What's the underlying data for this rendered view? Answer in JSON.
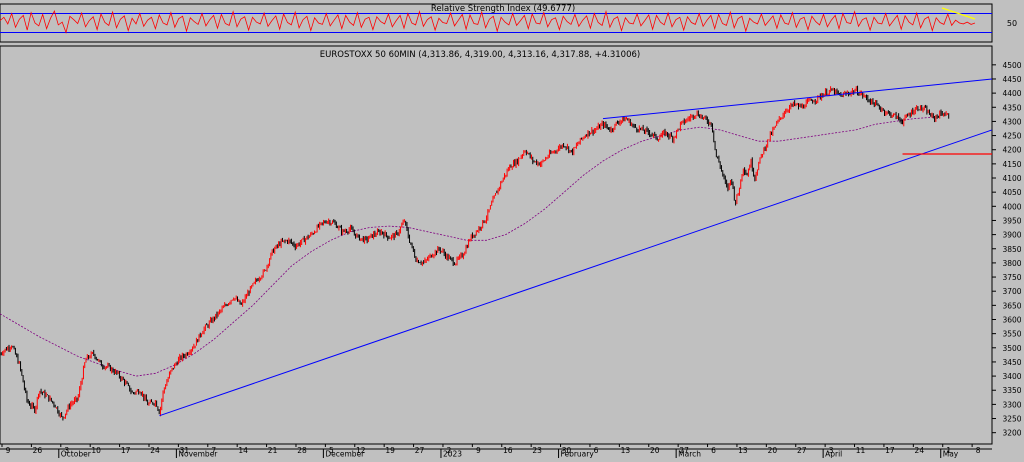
{
  "colors": {
    "background": "#c0c0c0",
    "frame": "#000000",
    "rsi_line": "#ff0000",
    "rsi_bands": "#0000ff",
    "candle_up": "#ff0000",
    "candle_down": "#000000",
    "moving_average": "#800080",
    "trendline": "#0000ff",
    "support_line": "#ff0000",
    "annotation": "#ffff00"
  },
  "chart_data": [
    {
      "type": "line",
      "title": "Relative Strength Index (49.6777)",
      "y_tick_labels": [
        "50"
      ],
      "series": [
        {
          "name": "RSI",
          "level_lines": [
            30,
            70
          ]
        }
      ],
      "ylim": [
        10,
        90
      ]
    },
    {
      "type": "candlestick",
      "title": "EUROSTOXX 50 60MIN (4,313.86, 4,319.00, 4,313.16, 4,317.88, +4.31006)",
      "ylim": [
        3160,
        4510
      ],
      "y_ticks": [
        3200,
        3250,
        3300,
        3350,
        3400,
        3450,
        3500,
        3550,
        3600,
        3650,
        3700,
        3750,
        3800,
        3850,
        3900,
        3950,
        4000,
        4050,
        4100,
        4150,
        4200,
        4250,
        4300,
        4350,
        4400,
        4450,
        4500
      ],
      "x_day_labels": [
        "9",
        "26",
        "3",
        "10",
        "17",
        "24",
        "31",
        "7",
        "14",
        "21",
        "28",
        "5",
        "12",
        "19",
        "27",
        "2",
        "9",
        "16",
        "23",
        "30",
        "6",
        "13",
        "20",
        "27",
        "6",
        "13",
        "20",
        "27",
        "3",
        "11",
        "17",
        "24",
        "1",
        "8"
      ],
      "x_month_labels": [
        "October",
        "November",
        "December",
        "2023",
        "February",
        "March",
        "April",
        "May"
      ],
      "price_path": [
        [
          0,
          3480
        ],
        [
          3,
          3510
        ],
        [
          5,
          3440
        ],
        [
          7,
          3310
        ],
        [
          9,
          3280
        ],
        [
          10,
          3350
        ],
        [
          12,
          3330
        ],
        [
          14,
          3300
        ],
        [
          16,
          3250
        ],
        [
          18,
          3300
        ],
        [
          20,
          3320
        ],
        [
          22,
          3460
        ],
        [
          24,
          3480
        ],
        [
          26,
          3440
        ],
        [
          28,
          3430
        ],
        [
          30,
          3410
        ],
        [
          32,
          3380
        ],
        [
          34,
          3340
        ],
        [
          36,
          3350
        ],
        [
          38,
          3300
        ],
        [
          40,
          3310
        ],
        [
          41,
          3270
        ],
        [
          42,
          3350
        ],
        [
          44,
          3420
        ],
        [
          46,
          3460
        ],
        [
          48,
          3480
        ],
        [
          50,
          3510
        ],
        [
          52,
          3560
        ],
        [
          54,
          3590
        ],
        [
          56,
          3620
        ],
        [
          58,
          3650
        ],
        [
          60,
          3680
        ],
        [
          62,
          3650
        ],
        [
          64,
          3700
        ],
        [
          66,
          3740
        ],
        [
          68,
          3770
        ],
        [
          70,
          3840
        ],
        [
          72,
          3870
        ],
        [
          74,
          3880
        ],
        [
          76,
          3860
        ],
        [
          78,
          3880
        ],
        [
          80,
          3900
        ],
        [
          82,
          3930
        ],
        [
          84,
          3950
        ],
        [
          86,
          3940
        ],
        [
          88,
          3910
        ],
        [
          90,
          3920
        ],
        [
          92,
          3890
        ],
        [
          94,
          3880
        ],
        [
          96,
          3900
        ],
        [
          98,
          3910
        ],
        [
          100,
          3890
        ],
        [
          102,
          3900
        ],
        [
          104,
          3950
        ],
        [
          105,
          3890
        ],
        [
          107,
          3810
        ],
        [
          109,
          3800
        ],
        [
          111,
          3830
        ],
        [
          113,
          3850
        ],
        [
          115,
          3820
        ],
        [
          117,
          3800
        ],
        [
          119,
          3830
        ],
        [
          121,
          3890
        ],
        [
          123,
          3920
        ],
        [
          125,
          3960
        ],
        [
          127,
          4030
        ],
        [
          129,
          4090
        ],
        [
          131,
          4140
        ],
        [
          133,
          4160
        ],
        [
          135,
          4200
        ],
        [
          137,
          4160
        ],
        [
          139,
          4150
        ],
        [
          141,
          4180
        ],
        [
          143,
          4200
        ],
        [
          145,
          4220
        ],
        [
          147,
          4190
        ],
        [
          149,
          4230
        ],
        [
          151,
          4260
        ],
        [
          153,
          4270
        ],
        [
          155,
          4290
        ],
        [
          157,
          4270
        ],
        [
          159,
          4300
        ],
        [
          161,
          4310
        ],
        [
          163,
          4280
        ],
        [
          165,
          4270
        ],
        [
          167,
          4260
        ],
        [
          169,
          4240
        ],
        [
          171,
          4260
        ],
        [
          173,
          4240
        ],
        [
          175,
          4290
        ],
        [
          177,
          4310
        ],
        [
          179,
          4330
        ],
        [
          181,
          4310
        ],
        [
          183,
          4290
        ],
        [
          184,
          4180
        ],
        [
          185,
          4150
        ],
        [
          186,
          4100
        ],
        [
          187,
          4060
        ],
        [
          188,
          4100
        ],
        [
          189,
          4010
        ],
        [
          190,
          4060
        ],
        [
          191,
          4140
        ],
        [
          192,
          4110
        ],
        [
          193,
          4160
        ],
        [
          194,
          4100
        ],
        [
          195,
          4150
        ],
        [
          196,
          4190
        ],
        [
          198,
          4250
        ],
        [
          200,
          4300
        ],
        [
          202,
          4340
        ],
        [
          204,
          4360
        ],
        [
          206,
          4350
        ],
        [
          208,
          4370
        ],
        [
          210,
          4380
        ],
        [
          212,
          4400
        ],
        [
          214,
          4410
        ],
        [
          216,
          4390
        ],
        [
          218,
          4400
        ],
        [
          220,
          4410
        ],
        [
          222,
          4390
        ],
        [
          224,
          4370
        ],
        [
          226,
          4350
        ],
        [
          228,
          4330
        ],
        [
          230,
          4320
        ],
        [
          232,
          4300
        ],
        [
          234,
          4330
        ],
        [
          236,
          4350
        ],
        [
          238,
          4340
        ],
        [
          240,
          4310
        ],
        [
          242,
          4330
        ],
        [
          244,
          4318
        ]
      ],
      "ma_path": [
        [
          0,
          3620
        ],
        [
          10,
          3540
        ],
        [
          20,
          3470
        ],
        [
          30,
          3420
        ],
        [
          35,
          3400
        ],
        [
          40,
          3410
        ],
        [
          45,
          3440
        ],
        [
          50,
          3480
        ],
        [
          55,
          3530
        ],
        [
          60,
          3590
        ],
        [
          65,
          3650
        ],
        [
          70,
          3720
        ],
        [
          75,
          3790
        ],
        [
          80,
          3840
        ],
        [
          85,
          3880
        ],
        [
          90,
          3910
        ],
        [
          95,
          3925
        ],
        [
          100,
          3930
        ],
        [
          105,
          3925
        ],
        [
          110,
          3910
        ],
        [
          115,
          3895
        ],
        [
          120,
          3880
        ],
        [
          125,
          3880
        ],
        [
          130,
          3900
        ],
        [
          135,
          3940
        ],
        [
          140,
          3990
        ],
        [
          145,
          4050
        ],
        [
          150,
          4110
        ],
        [
          155,
          4160
        ],
        [
          160,
          4200
        ],
        [
          165,
          4230
        ],
        [
          170,
          4250
        ],
        [
          175,
          4270
        ],
        [
          180,
          4280
        ],
        [
          185,
          4270
        ],
        [
          190,
          4250
        ],
        [
          195,
          4230
        ],
        [
          200,
          4230
        ],
        [
          205,
          4240
        ],
        [
          210,
          4250
        ],
        [
          215,
          4260
        ],
        [
          220,
          4270
        ],
        [
          225,
          4290
        ],
        [
          230,
          4300
        ],
        [
          235,
          4310
        ],
        [
          240,
          4315
        ]
      ],
      "trendlines": [
        {
          "from": [
            41,
            3260
          ],
          "to": [
            255,
            4270
          ]
        },
        {
          "from": [
            155,
            4310
          ],
          "to": [
            255,
            4450
          ]
        }
      ],
      "support_line": {
        "from": [
          232,
          4185
        ],
        "to": [
          255,
          4185
        ]
      },
      "x_range": [
        0,
        255
      ]
    }
  ],
  "rsi_path": [
    55,
    62,
    48,
    70,
    41,
    58,
    66,
    35,
    72,
    50,
    44,
    68,
    38,
    60,
    75,
    46,
    52,
    30,
    64,
    57,
    49,
    71,
    42,
    55,
    63,
    36,
    69,
    51,
    45,
    73,
    40,
    58,
    65,
    34,
    60,
    48,
    70,
    43,
    56,
    62,
    38,
    67,
    50,
    46,
    72,
    41,
    59,
    64,
    33,
    61,
    53,
    47,
    70,
    44,
    57,
    66,
    39,
    68,
    49,
    45,
    74,
    42,
    58,
    63,
    35,
    62,
    52,
    48,
    71,
    43,
    55,
    65,
    37,
    69,
    51,
    46,
    73,
    40,
    57,
    64,
    34,
    61,
    50,
    47,
    70,
    44,
    56,
    67,
    38,
    66,
    52,
    45,
    72,
    41,
    58,
    62,
    36,
    63,
    53,
    48,
    69,
    42,
    55,
    66,
    39,
    70,
    50,
    46,
    74,
    43,
    57,
    63,
    35,
    60,
    51,
    49,
    71,
    44,
    56,
    68,
    37,
    67,
    49,
    47,
    73,
    40,
    58,
    64,
    33,
    62,
    52,
    46,
    70,
    45,
    55,
    66,
    38,
    69,
    50,
    48,
    72,
    42,
    57,
    61,
    36,
    64,
    53,
    47,
    68,
    43,
    56,
    65,
    39,
    70,
    51,
    45,
    74,
    41,
    58,
    63,
    34,
    61,
    50,
    48,
    69,
    44,
    55,
    67,
    37,
    66,
    52,
    46,
    71,
    42,
    57,
    62,
    35,
    63,
    51,
    47,
    70,
    43,
    56,
    66,
    38,
    68,
    49,
    45,
    73,
    40,
    59,
    64,
    33,
    60,
    52,
    48,
    69,
    45,
    55,
    65,
    39,
    67,
    50,
    47,
    72,
    41,
    58,
    62,
    36,
    64,
    53,
    46,
    68,
    42,
    56,
    66,
    38,
    70,
    51,
    49,
    74,
    43,
    57,
    61,
    35,
    62,
    50,
    48,
    70,
    44,
    55,
    66,
    37,
    65,
    52,
    46,
    71,
    40,
    58,
    63,
    34,
    61,
    51,
    47,
    69,
    45,
    56,
    50,
    48,
    52,
    47,
    50
  ]
}
